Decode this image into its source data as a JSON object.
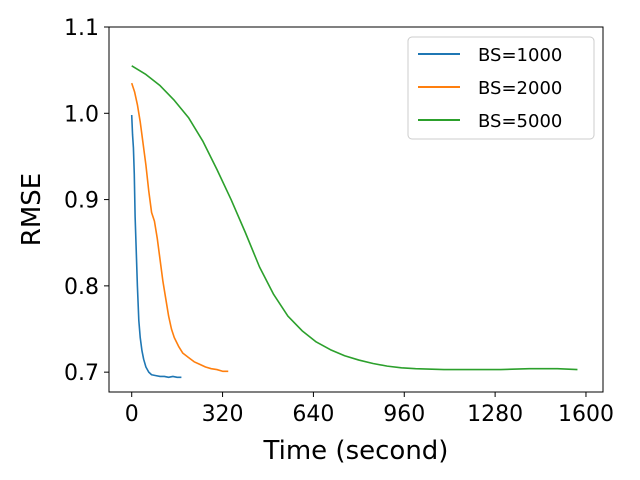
{
  "chart_data": {
    "type": "line",
    "xlabel": "Time (second)",
    "ylabel": "RMSE",
    "xlim": [
      -80,
      1660
    ],
    "ylim": [
      0.677,
      1.1
    ],
    "xticks": [
      0,
      320,
      640,
      960,
      1280,
      1600
    ],
    "xtick_labels": [
      "0",
      "320",
      "640",
      "960",
      "1280",
      "1600"
    ],
    "yticks": [
      0.7,
      0.8,
      0.9,
      1.0,
      1.1
    ],
    "ytick_labels": [
      "0.7",
      "0.8",
      "0.9",
      "1.0",
      "1.1"
    ],
    "grid": false,
    "legend_position": "top-right",
    "series": [
      {
        "name": "BS=1000",
        "color": "#1f77b4",
        "x": [
          0,
          3,
          6,
          9,
          12,
          16,
          20,
          25,
          30,
          36,
          42,
          50,
          60,
          70,
          85,
          100,
          115,
          130,
          145,
          160,
          175
        ],
        "y": [
          0.998,
          0.975,
          0.96,
          0.93,
          0.88,
          0.84,
          0.8,
          0.76,
          0.74,
          0.725,
          0.715,
          0.706,
          0.7,
          0.697,
          0.696,
          0.695,
          0.695,
          0.694,
          0.695,
          0.694,
          0.694
        ]
      },
      {
        "name": "BS=2000",
        "color": "#ff7f0e",
        "x": [
          0,
          10,
          20,
          30,
          40,
          50,
          60,
          70,
          80,
          90,
          100,
          110,
          120,
          130,
          140,
          150,
          165,
          180,
          200,
          220,
          240,
          260,
          280,
          300,
          320,
          340
        ],
        "y": [
          1.035,
          1.025,
          1.01,
          0.99,
          0.965,
          0.94,
          0.91,
          0.885,
          0.875,
          0.855,
          0.83,
          0.805,
          0.785,
          0.765,
          0.75,
          0.74,
          0.73,
          0.722,
          0.717,
          0.712,
          0.709,
          0.706,
          0.704,
          0.703,
          0.701,
          0.701
        ]
      },
      {
        "name": "BS=5000",
        "color": "#2ca02c",
        "x": [
          0,
          50,
          100,
          150,
          200,
          250,
          300,
          350,
          400,
          450,
          500,
          550,
          600,
          650,
          700,
          750,
          800,
          850,
          900,
          950,
          1000,
          1100,
          1200,
          1300,
          1400,
          1500,
          1570
        ],
        "y": [
          1.055,
          1.045,
          1.032,
          1.015,
          0.995,
          0.968,
          0.935,
          0.9,
          0.862,
          0.822,
          0.79,
          0.765,
          0.748,
          0.735,
          0.726,
          0.719,
          0.714,
          0.71,
          0.707,
          0.705,
          0.704,
          0.703,
          0.703,
          0.703,
          0.704,
          0.704,
          0.703
        ]
      }
    ]
  }
}
